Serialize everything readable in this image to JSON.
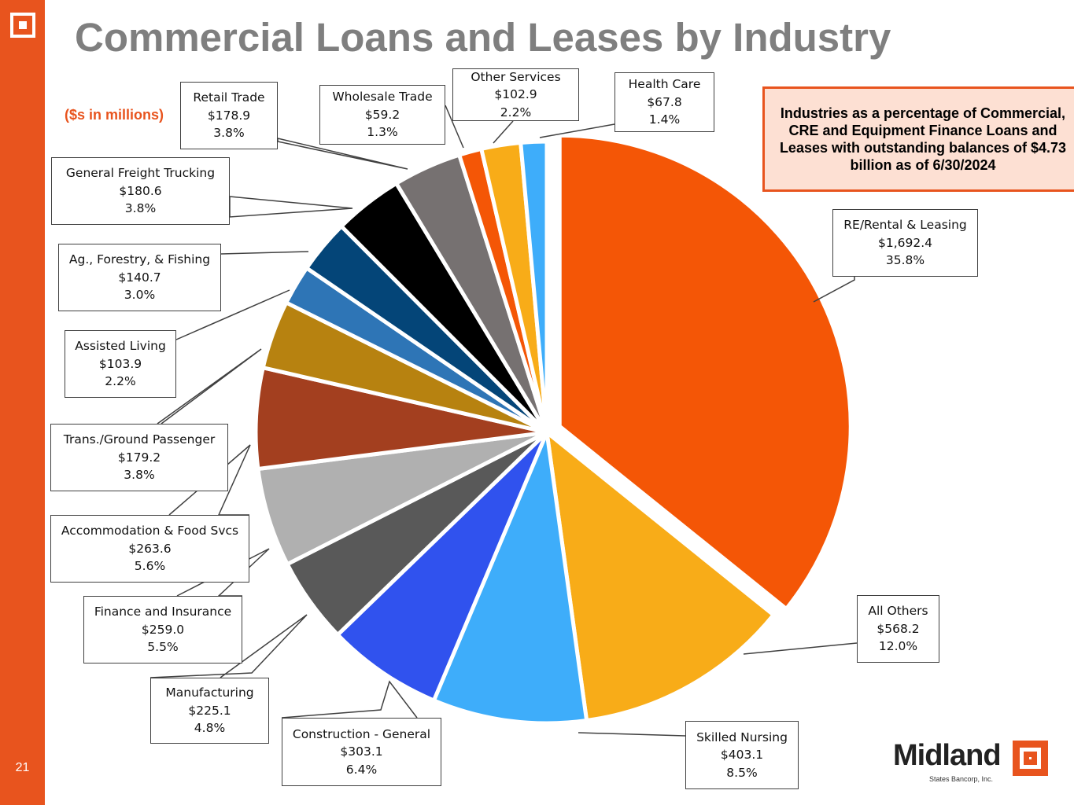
{
  "slide": {
    "title": "Commercial Loans and Leases by Industry",
    "units_note": "($s in millions)",
    "callout": "Industries as a percentage of Commercial, CRE and Equipment Finance Loans and Leases with outstanding balances of $4.73 billion as of 6/30/2024",
    "page_number": "21",
    "brand": {
      "name": "Midland",
      "subtitle": "States Bancorp, Inc."
    }
  },
  "colors": {
    "accent": "#e8541e",
    "title_gray": "#7f7f7f",
    "callout_fill": "#fde0d3"
  },
  "chart_data": {
    "type": "pie",
    "title": "",
    "slices": [
      {
        "name": "RE/Rental & Leasing",
        "value_label": "$1,692.4",
        "pct_label": "35.8%",
        "value": 1692.4,
        "color": "#f45606",
        "exploded": true
      },
      {
        "name": "All Others",
        "value_label": "$568.2",
        "pct_label": "12.0%",
        "value": 568.2,
        "color": "#f8ac18",
        "exploded": false
      },
      {
        "name": "Skilled Nursing",
        "value_label": "$403.1",
        "pct_label": "8.5%",
        "value": 403.1,
        "color": "#3eadfa",
        "exploded": false
      },
      {
        "name": "Construction - General",
        "value_label": "$303.1",
        "pct_label": "6.4%",
        "value": 303.1,
        "color": "#3052ee",
        "exploded": false
      },
      {
        "name": "Manufacturing",
        "value_label": "$225.1",
        "pct_label": "4.8%",
        "value": 225.1,
        "color": "#595959",
        "exploded": false
      },
      {
        "name": "Finance and Insurance",
        "value_label": "$259.0",
        "pct_label": "5.5%",
        "value": 259.0,
        "color": "#b0b0b0",
        "exploded": false
      },
      {
        "name": "Accommodation & Food Svcs",
        "value_label": "$263.6",
        "pct_label": "5.6%",
        "value": 263.6,
        "color": "#a33f1f",
        "exploded": false
      },
      {
        "name": "Trans./Ground Passenger",
        "value_label": "$179.2",
        "pct_label": "3.8%",
        "value": 179.2,
        "color": "#b78210",
        "exploded": false
      },
      {
        "name": "Assisted Living",
        "value_label": "$103.9",
        "pct_label": "2.2%",
        "value": 103.9,
        "color": "#2e75b6",
        "exploded": false
      },
      {
        "name": "Ag., Forestry, & Fishing",
        "value_label": "$140.7",
        "pct_label": "3.0%",
        "value": 140.7,
        "color": "#044578",
        "exploded": false
      },
      {
        "name": "General Freight Trucking",
        "value_label": "$180.6",
        "pct_label": "3.8%",
        "value": 180.6,
        "color": "#000000",
        "exploded": false
      },
      {
        "name": "Retail Trade",
        "value_label": "$178.9",
        "pct_label": "3.8%",
        "value": 178.9,
        "color": "#767171",
        "exploded": false
      },
      {
        "name": "Wholesale Trade",
        "value_label": "$59.2",
        "pct_label": "1.3%",
        "value": 59.2,
        "color": "#f45606",
        "exploded": false
      },
      {
        "name": "Other Services",
        "value_label": "$102.9",
        "pct_label": "2.2%",
        "value": 102.9,
        "color": "#f8ac18",
        "exploded": false
      },
      {
        "name": "Health Care",
        "value_label": "$67.8",
        "pct_label": "1.4%",
        "value": 67.8,
        "color": "#3eadfa",
        "exploded": false
      }
    ]
  }
}
